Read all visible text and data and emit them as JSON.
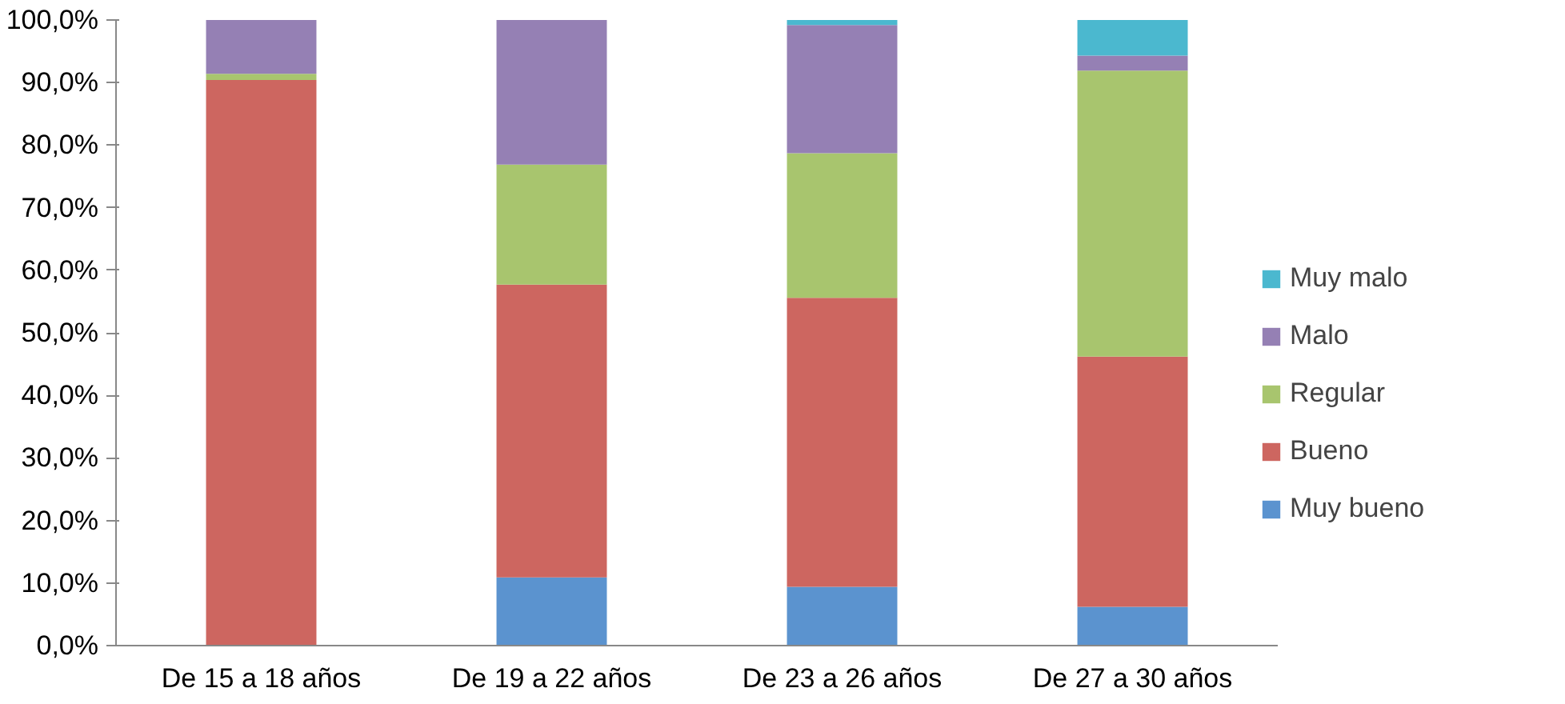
{
  "chart_data": {
    "type": "bar",
    "stacked": true,
    "categories": [
      "De 15 a 18 años",
      "De 19 a 22 años",
      "De 23 a 26 años",
      "De 27 a 30 años"
    ],
    "series": [
      {
        "name": "Muy bueno",
        "color": "#5b93cf",
        "values": [
          0,
          10.9,
          9.4,
          6.2
        ]
      },
      {
        "name": "Bueno",
        "color": "#cd6660",
        "values": [
          90.4,
          46.8,
          46.2,
          40.0
        ]
      },
      {
        "name": "Regular",
        "color": "#a8c56e",
        "values": [
          1.0,
          19.2,
          23.1,
          45.7
        ]
      },
      {
        "name": "Malo",
        "color": "#9580b4",
        "values": [
          8.6,
          23.1,
          20.5,
          2.4
        ]
      },
      {
        "name": "Muy malo",
        "color": "#4bb8cf",
        "values": [
          0,
          0,
          0.8,
          5.7
        ]
      }
    ],
    "ylim": [
      0,
      100
    ],
    "yticks": [
      {
        "value": 0,
        "label": "0,0%"
      },
      {
        "value": 10,
        "label": "10,0%"
      },
      {
        "value": 20,
        "label": "20,0%"
      },
      {
        "value": 30,
        "label": "30,0%"
      },
      {
        "value": 40,
        "label": "40,0%"
      },
      {
        "value": 50,
        "label": "50,0%"
      },
      {
        "value": 60,
        "label": "60,0%"
      },
      {
        "value": 70,
        "label": "70,0%"
      },
      {
        "value": 80,
        "label": "80,0%"
      },
      {
        "value": 90,
        "label": "90,0%"
      },
      {
        "value": 100,
        "label": "100,0%"
      }
    ],
    "grid": false,
    "legend": "right"
  }
}
